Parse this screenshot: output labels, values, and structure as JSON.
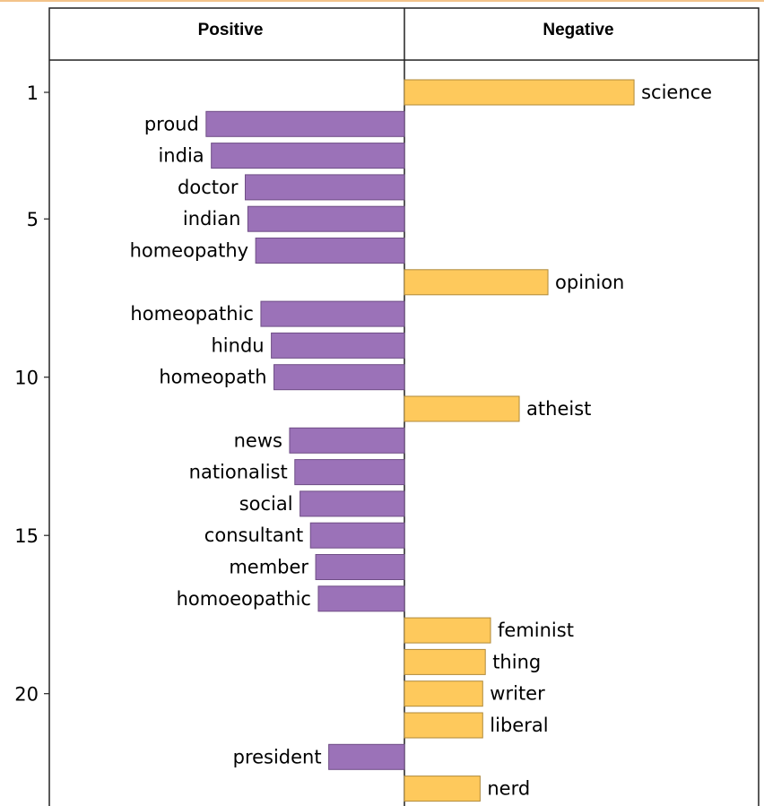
{
  "chart_data": {
    "type": "bar",
    "orientation": "horizontal-diverging",
    "columns": [
      "Positive",
      "Negative"
    ],
    "y_ticks": [
      "1",
      "5",
      "10",
      "15",
      "20"
    ],
    "colors": {
      "Positive": "#9b72b8",
      "Negative": "#fec95c"
    },
    "bars": [
      {
        "rank": 1,
        "word": "science",
        "side": "Negative",
        "value": 0.88
      },
      {
        "rank": 2,
        "word": "proud",
        "side": "Positive",
        "value": 0.76
      },
      {
        "rank": 3,
        "word": "india",
        "side": "Positive",
        "value": 0.74
      },
      {
        "rank": 4,
        "word": "doctor",
        "side": "Positive",
        "value": 0.61
      },
      {
        "rank": 5,
        "word": "indian",
        "side": "Positive",
        "value": 0.6
      },
      {
        "rank": 6,
        "word": "homeopathy",
        "side": "Positive",
        "value": 0.57
      },
      {
        "rank": 7,
        "word": "opinion",
        "side": "Negative",
        "value": 0.55
      },
      {
        "rank": 8,
        "word": "homeopathic",
        "side": "Positive",
        "value": 0.55
      },
      {
        "rank": 9,
        "word": "hindu",
        "side": "Positive",
        "value": 0.51
      },
      {
        "rank": 10,
        "word": "homeopath",
        "side": "Positive",
        "value": 0.5
      },
      {
        "rank": 11,
        "word": "atheist",
        "side": "Negative",
        "value": 0.44
      },
      {
        "rank": 12,
        "word": "news",
        "side": "Positive",
        "value": 0.44
      },
      {
        "rank": 13,
        "word": "nationalist",
        "side": "Positive",
        "value": 0.42
      },
      {
        "rank": 14,
        "word": "social",
        "side": "Positive",
        "value": 0.4
      },
      {
        "rank": 15,
        "word": "consultant",
        "side": "Positive",
        "value": 0.36
      },
      {
        "rank": 16,
        "word": "member",
        "side": "Positive",
        "value": 0.34
      },
      {
        "rank": 17,
        "word": "homoeopathic",
        "side": "Positive",
        "value": 0.33
      },
      {
        "rank": 18,
        "word": "feminist",
        "side": "Negative",
        "value": 0.33
      },
      {
        "rank": 19,
        "word": "thing",
        "side": "Negative",
        "value": 0.31
      },
      {
        "rank": 20,
        "word": "writer",
        "side": "Negative",
        "value": 0.3
      },
      {
        "rank": 21,
        "word": "liberal",
        "side": "Negative",
        "value": 0.3
      },
      {
        "rank": 22,
        "word": "president",
        "side": "Positive",
        "value": 0.29
      },
      {
        "rank": 23,
        "word": "nerd",
        "side": "Negative",
        "value": 0.29
      }
    ]
  }
}
